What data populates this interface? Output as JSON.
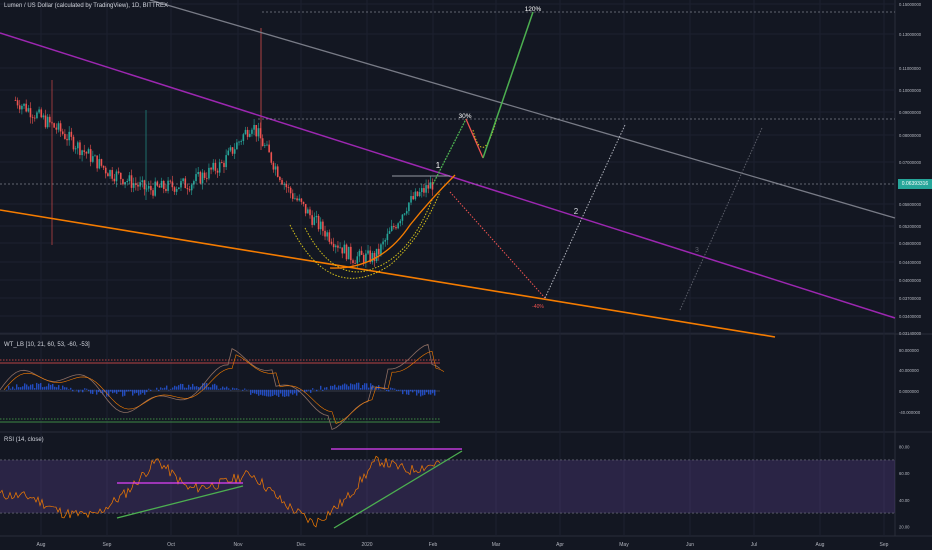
{
  "main_header": "Lumen / US Dollar (calculated by TradingView), 1D, BITTREX",
  "wt_header": "WT_LB [10, 21, 60, 53, -60, -53]",
  "rsi_header": "RSI (14, close)",
  "current_price": "0.06393316",
  "colors": {
    "background": "#131722",
    "up": "#26a69a",
    "down": "#ef5350",
    "purple": "#9c27b0",
    "orange": "#f57c00",
    "green": "#4caf50",
    "gray": "#787b86",
    "yellow": "#d4c11a"
  },
  "annotations": {
    "wave1": "1",
    "wave2": "2",
    "wave3": "3",
    "pct_120": "120%",
    "pct_30": "30%",
    "pct_neg40": "-40%"
  },
  "chart_data": [
    {
      "type": "candlestick",
      "title": "Lumen / US Dollar (calculated by TradingView), 1D, BITTREX",
      "x_tick_labels": [
        "Aug",
        "Sep",
        "Oct",
        "Nov",
        "Dec",
        "2020",
        "Feb",
        "Mar",
        "Apr",
        "May",
        "Jun",
        "Jul",
        "Aug",
        "Sep"
      ],
      "y_tick_labels": [
        "0.15000000",
        "0.13000000",
        "0.11000000",
        "0.10000000",
        "0.09000000",
        "0.08000000",
        "0.07000000",
        "0.06393316",
        "0.05800000",
        "0.05200000",
        "0.04800000",
        "0.04400000",
        "0.04000000",
        "0.03700000",
        "0.03400000",
        "0.03140000"
      ],
      "y_scale": "log",
      "approx_close_path": [
        {
          "x": "2019-07-20",
          "y": 0.095
        },
        {
          "x": "2019-08-10",
          "y": 0.082
        },
        {
          "x": "2019-09-01",
          "y": 0.068
        },
        {
          "x": "2019-09-20",
          "y": 0.062
        },
        {
          "x": "2019-10-10",
          "y": 0.064
        },
        {
          "x": "2019-10-25",
          "y": 0.07
        },
        {
          "x": "2019-11-08",
          "y": 0.085
        },
        {
          "x": "2019-11-25",
          "y": 0.062
        },
        {
          "x": "2019-12-10",
          "y": 0.052
        },
        {
          "x": "2019-12-25",
          "y": 0.045
        },
        {
          "x": "2020-01-05",
          "y": 0.045
        },
        {
          "x": "2020-01-20",
          "y": 0.058
        },
        {
          "x": "2020-02-01",
          "y": 0.064
        }
      ],
      "ylim": [
        0.031,
        0.15
      ]
    },
    {
      "type": "line",
      "title": "WT_LB [10, 21, 60, 53, -60, -53]",
      "y_tick_labels": [
        "80.000000",
        "40.000000",
        "0.0000000",
        "-40.000000"
      ],
      "ylim": [
        -70,
        90
      ]
    },
    {
      "type": "line",
      "title": "RSI (14, close)",
      "y_tick_labels": [
        "80.00",
        "60.00",
        "40.00",
        "20.00"
      ],
      "ylim": [
        15,
        85
      ],
      "levels": [
        70,
        30
      ],
      "series": [
        {
          "values": [
            44,
            42,
            30,
            28,
            45,
            70,
            48,
            52,
            60,
            38,
            22,
            40,
            70,
            62,
            68
          ]
        }
      ]
    }
  ]
}
